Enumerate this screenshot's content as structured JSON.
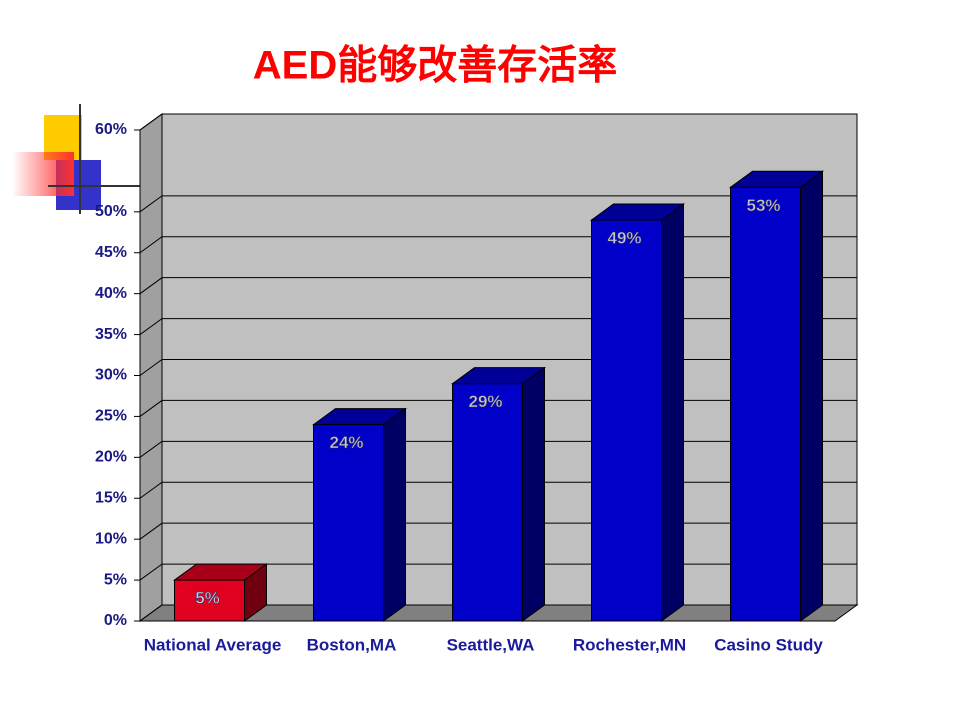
{
  "chart_data": {
    "type": "bar3d",
    "title": "AED能够改善存活率",
    "categories": [
      "National Average",
      "Boston,MA",
      "Seattle,WA",
      "Rochester,MN",
      "Casino Study"
    ],
    "values": [
      5,
      24,
      29,
      49,
      53
    ],
    "value_labels": [
      "5%",
      "24%",
      "29%",
      "49%",
      "53%"
    ],
    "colors": [
      "#e00020",
      "#0000c8",
      "#0000c8",
      "#0000c8",
      "#0000c8"
    ],
    "ylim": [
      0,
      60
    ],
    "yticks": [
      {
        "value": 0,
        "label": "0%"
      },
      {
        "value": 5,
        "label": "5%"
      },
      {
        "value": 10,
        "label": "10%"
      },
      {
        "value": 15,
        "label": "15%"
      },
      {
        "value": 20,
        "label": "20%"
      },
      {
        "value": 25,
        "label": "25%"
      },
      {
        "value": 30,
        "label": "30%"
      },
      {
        "value": 35,
        "label": "35%"
      },
      {
        "value": 40,
        "label": "40%"
      },
      {
        "value": 45,
        "label": "45%"
      },
      {
        "value": 50,
        "label": "50%"
      },
      {
        "value": 60,
        "label": "60%"
      }
    ],
    "grid": true
  }
}
